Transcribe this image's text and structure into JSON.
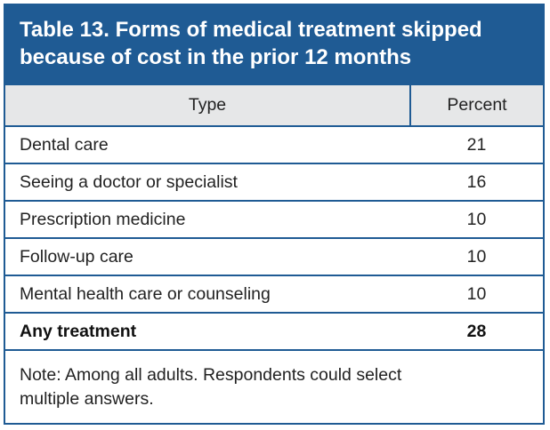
{
  "title": "Table 13. Forms of medical treatment skipped because of cost in the prior 12 months",
  "header": {
    "type": "Type",
    "percent": "Percent"
  },
  "rows": [
    {
      "type": "Dental care",
      "percent": "21"
    },
    {
      "type": "Seeing a doctor or specialist",
      "percent": "16"
    },
    {
      "type": "Prescription medicine",
      "percent": "10"
    },
    {
      "type": "Follow-up care",
      "percent": "10"
    },
    {
      "type": "Mental health care or counseling",
      "percent": "10"
    }
  ],
  "total": {
    "type": "Any treatment",
    "percent": "28"
  },
  "note": "Note: Among all adults. Respondents could select multiple answers.",
  "colors": {
    "accent": "#1f5b94",
    "header_bg": "#e6e7e8"
  }
}
